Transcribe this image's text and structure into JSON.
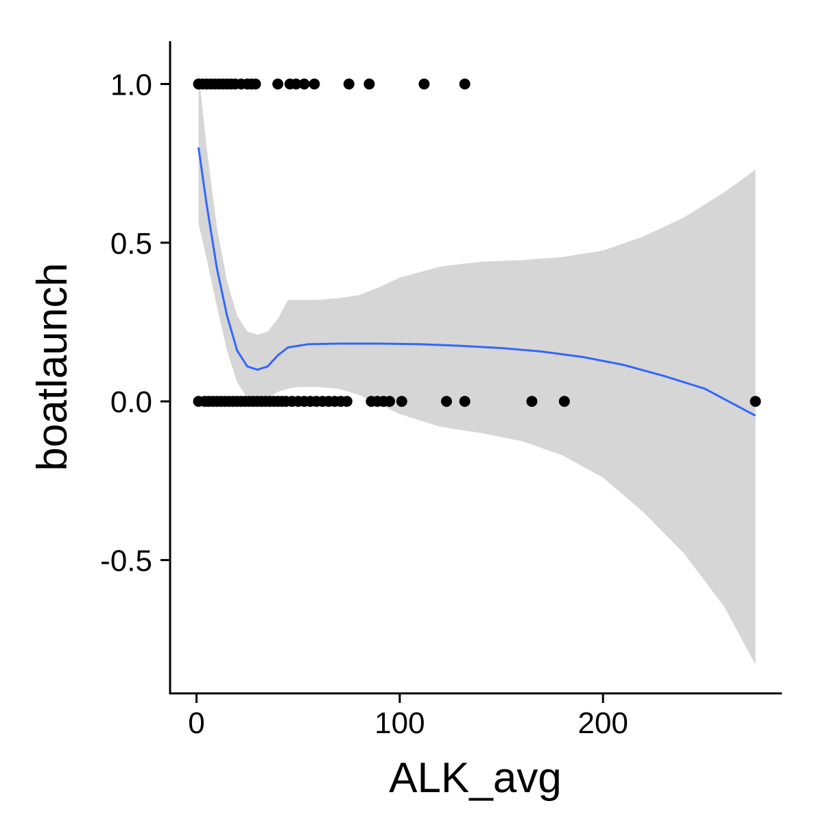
{
  "chart_data": {
    "type": "scatter",
    "title": "",
    "xlabel": "ALK_avg",
    "ylabel": "boatlaunch",
    "xlim": [
      -13,
      288
    ],
    "ylim": [
      -0.92,
      1.135
    ],
    "x_ticks": [
      0,
      100,
      200
    ],
    "x_tick_labels": [
      "0",
      "100",
      "200"
    ],
    "y_ticks": [
      -0.5,
      0.0,
      0.5,
      1.0
    ],
    "y_tick_labels": [
      "-0.5",
      "0.0",
      "0.5",
      "1.0"
    ],
    "grid": false,
    "legend": "none",
    "colors": {
      "points": "#000000",
      "smooth_line": "#3366FF",
      "confidence_band": "#D6D6D6"
    },
    "points": [
      {
        "x": 1,
        "y": 1
      },
      {
        "x": 3,
        "y": 1
      },
      {
        "x": 5,
        "y": 1
      },
      {
        "x": 7,
        "y": 1
      },
      {
        "x": 9,
        "y": 1
      },
      {
        "x": 11,
        "y": 1
      },
      {
        "x": 13,
        "y": 1
      },
      {
        "x": 15,
        "y": 1
      },
      {
        "x": 17,
        "y": 1
      },
      {
        "x": 19,
        "y": 1
      },
      {
        "x": 22,
        "y": 1
      },
      {
        "x": 25,
        "y": 1
      },
      {
        "x": 27,
        "y": 1
      },
      {
        "x": 29,
        "y": 1
      },
      {
        "x": 40,
        "y": 1
      },
      {
        "x": 46,
        "y": 1
      },
      {
        "x": 49,
        "y": 1
      },
      {
        "x": 53,
        "y": 1
      },
      {
        "x": 58,
        "y": 1
      },
      {
        "x": 75,
        "y": 1
      },
      {
        "x": 85,
        "y": 1
      },
      {
        "x": 112,
        "y": 1
      },
      {
        "x": 132,
        "y": 1
      },
      {
        "x": 1,
        "y": 0
      },
      {
        "x": 4,
        "y": 0
      },
      {
        "x": 6,
        "y": 0
      },
      {
        "x": 8,
        "y": 0
      },
      {
        "x": 10,
        "y": 0
      },
      {
        "x": 12,
        "y": 0
      },
      {
        "x": 14,
        "y": 0
      },
      {
        "x": 16,
        "y": 0
      },
      {
        "x": 18,
        "y": 0
      },
      {
        "x": 20,
        "y": 0
      },
      {
        "x": 22,
        "y": 0
      },
      {
        "x": 24,
        "y": 0
      },
      {
        "x": 26,
        "y": 0
      },
      {
        "x": 28,
        "y": 0
      },
      {
        "x": 30,
        "y": 0
      },
      {
        "x": 32,
        "y": 0
      },
      {
        "x": 34,
        "y": 0
      },
      {
        "x": 36,
        "y": 0
      },
      {
        "x": 38,
        "y": 0
      },
      {
        "x": 40,
        "y": 0
      },
      {
        "x": 42,
        "y": 0
      },
      {
        "x": 44,
        "y": 0
      },
      {
        "x": 47,
        "y": 0
      },
      {
        "x": 50,
        "y": 0
      },
      {
        "x": 53,
        "y": 0
      },
      {
        "x": 56,
        "y": 0
      },
      {
        "x": 59,
        "y": 0
      },
      {
        "x": 62,
        "y": 0
      },
      {
        "x": 65,
        "y": 0
      },
      {
        "x": 68,
        "y": 0
      },
      {
        "x": 71,
        "y": 0
      },
      {
        "x": 74,
        "y": 0
      },
      {
        "x": 86,
        "y": 0
      },
      {
        "x": 89,
        "y": 0
      },
      {
        "x": 92,
        "y": 0
      },
      {
        "x": 95,
        "y": 0
      },
      {
        "x": 101,
        "y": 0
      },
      {
        "x": 123,
        "y": 0
      },
      {
        "x": 132,
        "y": 0
      },
      {
        "x": 165,
        "y": 0
      },
      {
        "x": 181,
        "y": 0
      },
      {
        "x": 275,
        "y": 0
      }
    ],
    "smooth_line": {
      "x": [
        1,
        5,
        10,
        15,
        20,
        25,
        30,
        35,
        40,
        45,
        55,
        70,
        90,
        110,
        130,
        150,
        170,
        190,
        210,
        230,
        250,
        275
      ],
      "y": [
        0.8,
        0.62,
        0.42,
        0.27,
        0.16,
        0.11,
        0.1,
        0.11,
        0.145,
        0.17,
        0.18,
        0.182,
        0.182,
        0.18,
        0.175,
        0.168,
        0.157,
        0.14,
        0.115,
        0.08,
        0.04,
        -0.045
      ]
    },
    "confidence_band": {
      "x": [
        1,
        5,
        10,
        15,
        20,
        25,
        30,
        35,
        40,
        45,
        50,
        55,
        60,
        70,
        80,
        90,
        100,
        120,
        140,
        160,
        180,
        200,
        220,
        240,
        260,
        275
      ],
      "upper": [
        1.04,
        0.8,
        0.55,
        0.38,
        0.27,
        0.22,
        0.21,
        0.22,
        0.26,
        0.32,
        0.32,
        0.32,
        0.32,
        0.325,
        0.335,
        0.36,
        0.39,
        0.425,
        0.44,
        0.445,
        0.455,
        0.475,
        0.52,
        0.58,
        0.66,
        0.73
      ],
      "lower": [
        0.56,
        0.45,
        0.3,
        0.16,
        0.06,
        0.01,
        -0.01,
        0.01,
        0.03,
        0.04,
        0.045,
        0.045,
        0.045,
        0.04,
        0.02,
        -0.01,
        -0.04,
        -0.08,
        -0.1,
        -0.125,
        -0.17,
        -0.24,
        -0.35,
        -0.48,
        -0.65,
        -0.83
      ]
    }
  }
}
